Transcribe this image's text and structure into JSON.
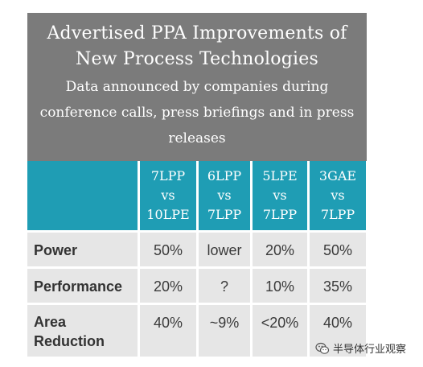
{
  "title": "Advertised PPA Improvements of New Process Technologies",
  "subtitle": "Data announced by companies during conference calls, press briefings and in press releases",
  "columns": [
    {
      "line1": "7LPP",
      "line2": "vs",
      "line3": "10LPE"
    },
    {
      "line1": "6LPP",
      "line2": "vs",
      "line3": "7LPP"
    },
    {
      "line1": "5LPE",
      "line2": "vs",
      "line3": "7LPP"
    },
    {
      "line1": "3GAE",
      "line2": "vs",
      "line3": "7LPP"
    }
  ],
  "rows": [
    {
      "label": "Power",
      "values": [
        "50%",
        "lower",
        "20%",
        "50%"
      ]
    },
    {
      "label": "Performance",
      "values": [
        "20%",
        "?",
        "10%",
        "35%"
      ]
    },
    {
      "label": "Area Reduction",
      "values": [
        "40%",
        "~9%",
        "<20%",
        "40%"
      ]
    }
  ],
  "watermark": {
    "text": "半导体行业观察",
    "icon": "wechat-icon"
  },
  "colors": {
    "header_gray": "#7b7b7b",
    "header_teal": "#1f9db4",
    "cell_gray": "#e6e6e6"
  }
}
